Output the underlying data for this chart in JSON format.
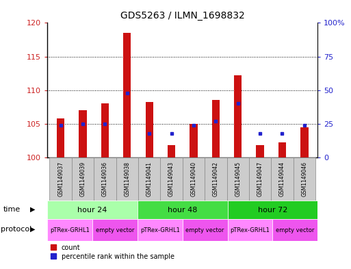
{
  "title": "GDS5263 / ILMN_1698832",
  "samples": [
    "GSM1149037",
    "GSM1149039",
    "GSM1149036",
    "GSM1149038",
    "GSM1149041",
    "GSM1149043",
    "GSM1149040",
    "GSM1149042",
    "GSM1149045",
    "GSM1149047",
    "GSM1149044",
    "GSM1149046"
  ],
  "counts": [
    105.8,
    107.0,
    108.0,
    118.5,
    108.2,
    101.8,
    105.0,
    108.5,
    112.2,
    101.8,
    102.2,
    104.5
  ],
  "percentile_ranks": [
    24,
    25,
    25,
    48,
    18,
    18,
    24,
    27,
    40,
    18,
    18,
    24
  ],
  "ylim_left": [
    100,
    120
  ],
  "ylim_right": [
    0,
    100
  ],
  "yticks_left": [
    100,
    105,
    110,
    115,
    120
  ],
  "yticks_right": [
    0,
    25,
    50,
    75,
    100
  ],
  "ytick_labels_left": [
    "100",
    "105",
    "110",
    "115",
    "120"
  ],
  "ytick_labels_right": [
    "0",
    "25",
    "50",
    "75",
    "100%"
  ],
  "time_groups": [
    {
      "label": "hour 24",
      "start": 0,
      "end": 4,
      "color": "#aaffaa"
    },
    {
      "label": "hour 48",
      "start": 4,
      "end": 8,
      "color": "#44dd44"
    },
    {
      "label": "hour 72",
      "start": 8,
      "end": 12,
      "color": "#22cc22"
    }
  ],
  "protocol_colors": [
    "#ff88ff",
    "#ee55ee"
  ],
  "protocol_groups": [
    {
      "label": "pTRex-GRHL1",
      "start": 0,
      "end": 2,
      "color": "#ff88ff"
    },
    {
      "label": "empty vector",
      "start": 2,
      "end": 4,
      "color": "#ee55ee"
    },
    {
      "label": "pTRex-GRHL1",
      "start": 4,
      "end": 6,
      "color": "#ff88ff"
    },
    {
      "label": "empty vector",
      "start": 6,
      "end": 8,
      "color": "#ee55ee"
    },
    {
      "label": "pTRex-GRHL1",
      "start": 8,
      "end": 10,
      "color": "#ff88ff"
    },
    {
      "label": "empty vector",
      "start": 10,
      "end": 12,
      "color": "#ee55ee"
    }
  ],
  "bar_color": "#cc1111",
  "dot_color": "#2222cc",
  "bar_width": 0.35,
  "baseline": 100,
  "label_color_left": "#cc2222",
  "label_color_right": "#2222cc",
  "sample_box_color": "#cccccc",
  "border_color": "#888888"
}
